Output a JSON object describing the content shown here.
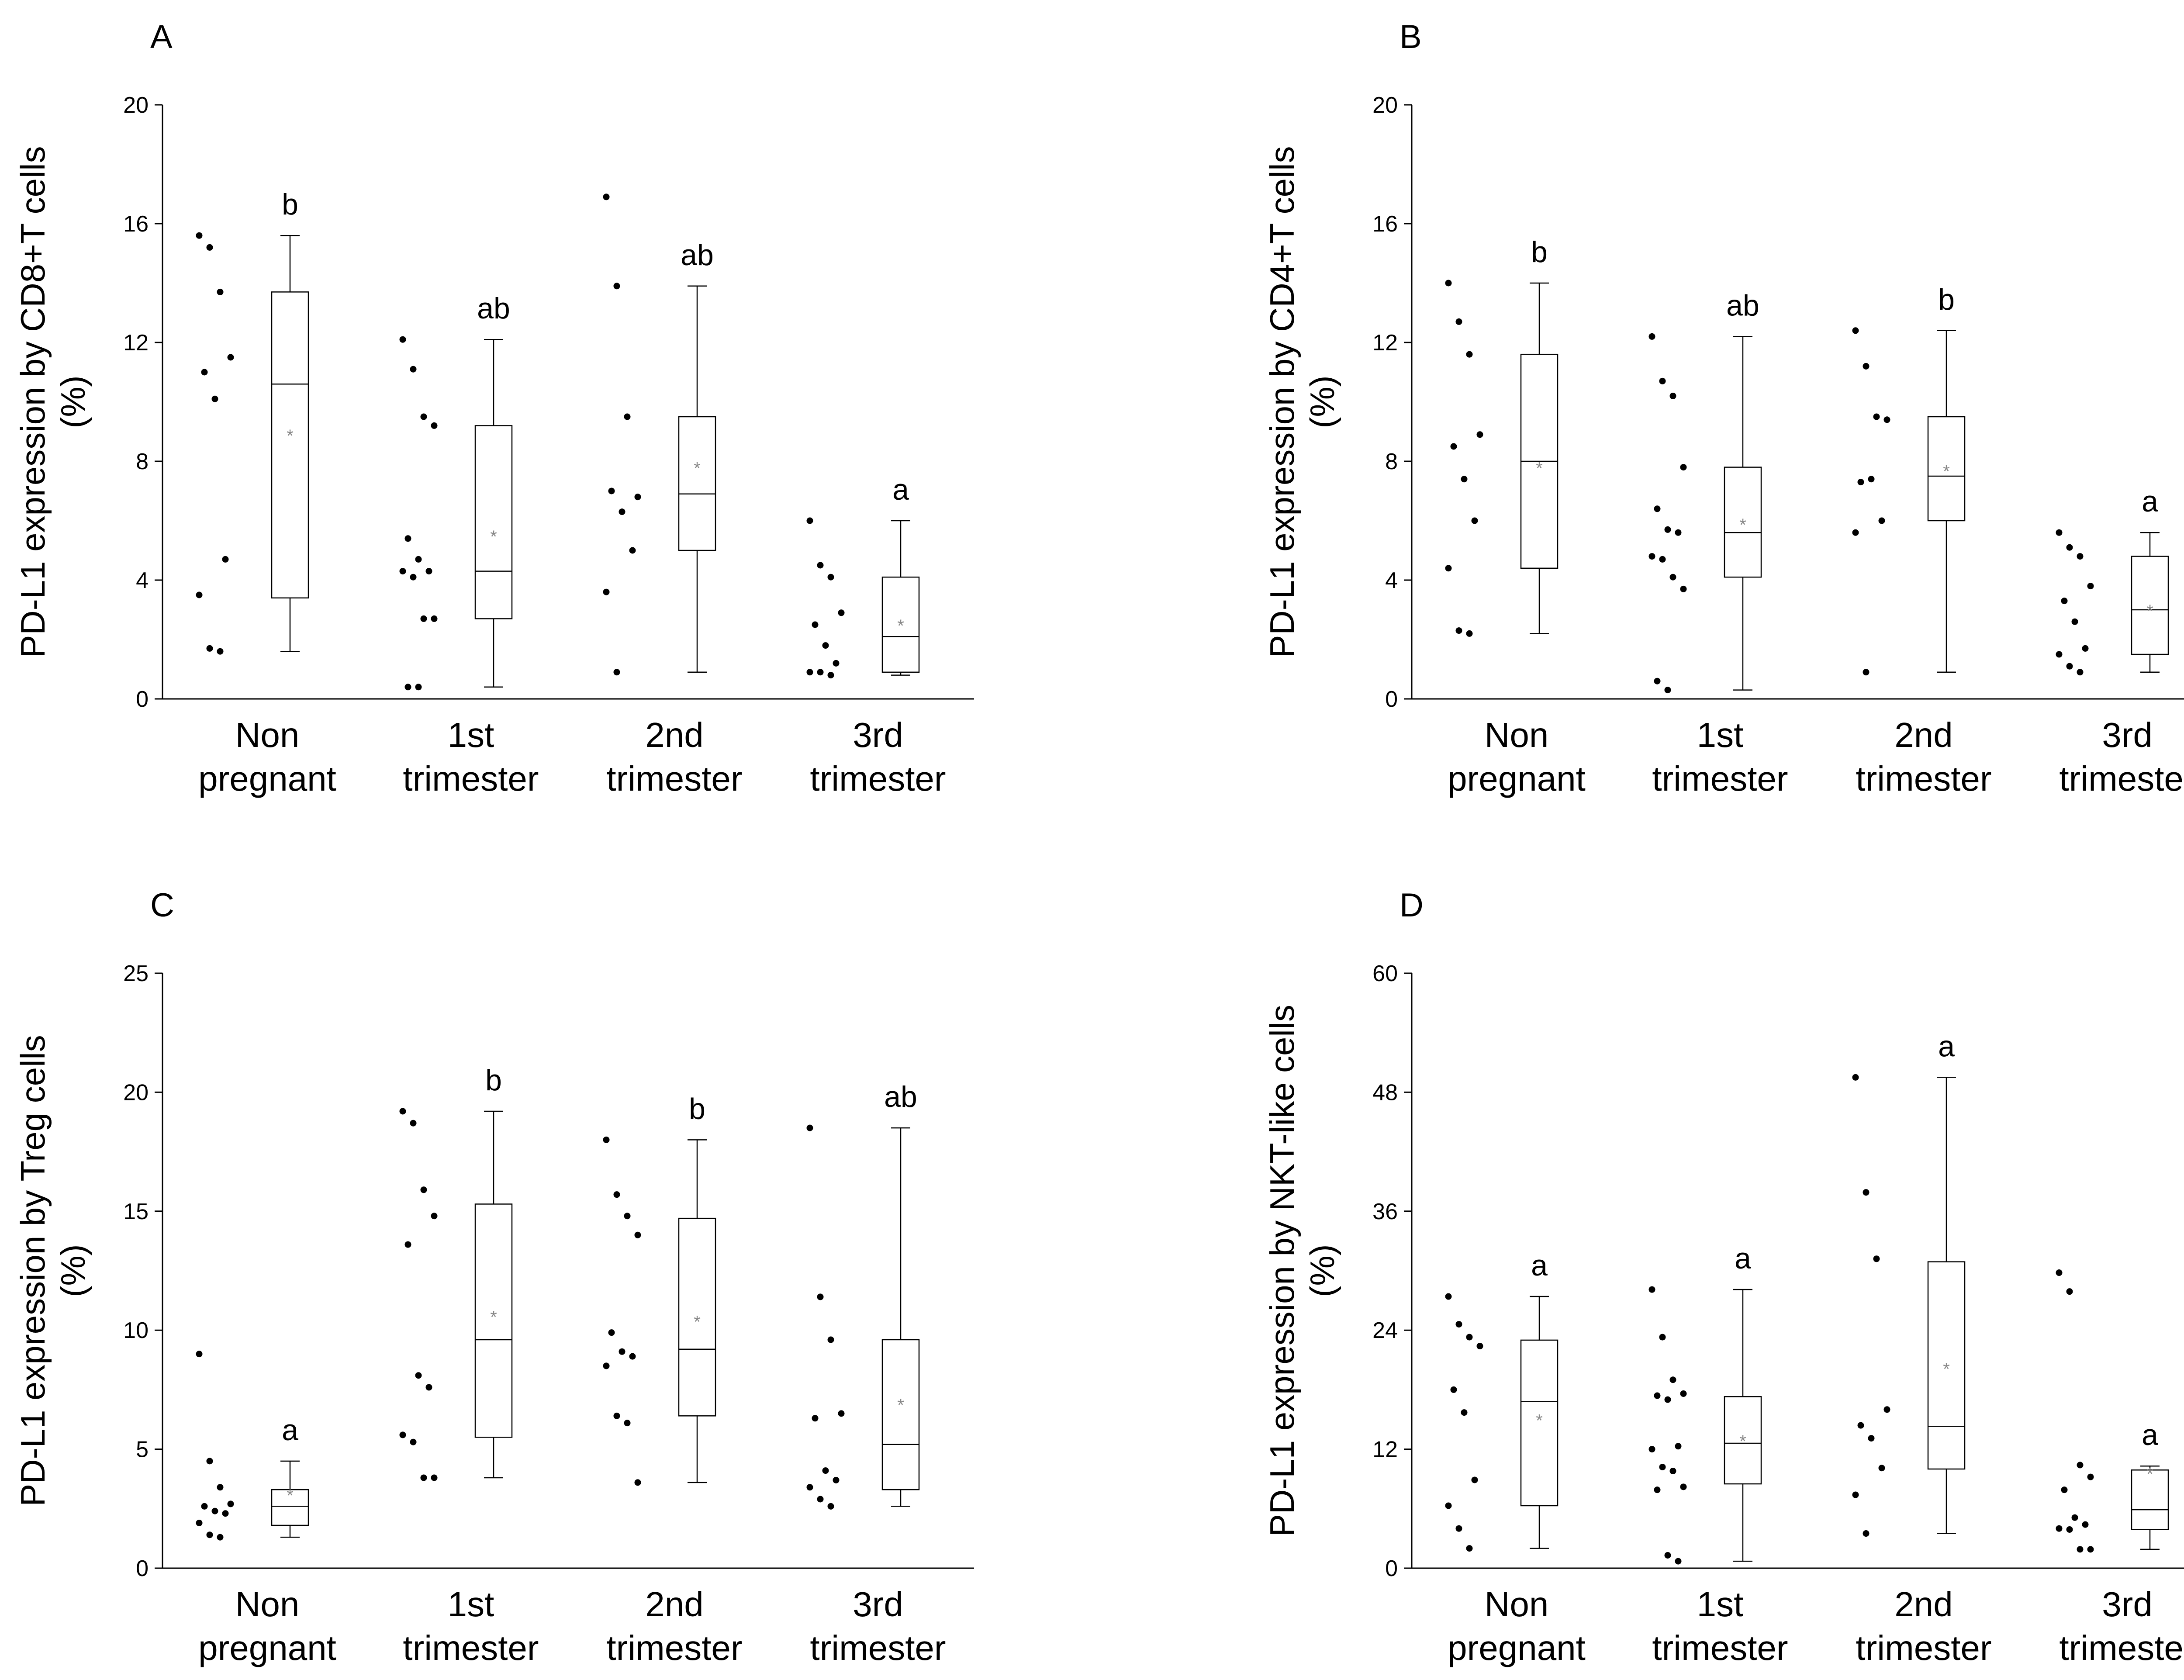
{
  "figure": {
    "colors": {
      "ink": "#000000",
      "mean_marker": "#888888",
      "background": "#ffffff"
    }
  },
  "chart_data": [
    {
      "panel": "A",
      "type": "box",
      "title": "",
      "ylabel": [
        "PD-L1 expression by CD8+T cells",
        "(%)"
      ],
      "ylim": [
        0,
        20
      ],
      "yticks": [
        0,
        4,
        8,
        12,
        16,
        20
      ],
      "categories": [
        [
          "Non",
          "pregnant"
        ],
        [
          "1st",
          "trimester"
        ],
        [
          "2nd",
          "trimester"
        ],
        [
          "3rd",
          "trimester"
        ]
      ],
      "groups": [
        {
          "points": [
            15.6,
            15.2,
            13.7,
            11.5,
            11.0,
            10.1,
            4.7,
            3.5,
            1.7,
            1.6
          ],
          "box": {
            "q1": 3.4,
            "median": 10.6,
            "q3": 13.7,
            "whisker_low": 1.6,
            "whisker_high": 15.6,
            "mean": 8.9
          },
          "letter": "b"
        },
        {
          "points": [
            12.1,
            11.1,
            9.5,
            9.2,
            5.4,
            4.7,
            4.3,
            4.3,
            4.1,
            2.7,
            2.7,
            0.4,
            0.4
          ],
          "box": {
            "q1": 2.7,
            "median": 4.3,
            "q3": 9.2,
            "whisker_low": 0.4,
            "whisker_high": 12.1,
            "mean": 5.5
          },
          "letter": "ab"
        },
        {
          "points": [
            16.9,
            13.9,
            9.5,
            6.8,
            7.0,
            6.3,
            5.0,
            3.6,
            0.9
          ],
          "box": {
            "q1": 5.0,
            "median": 6.9,
            "q3": 9.5,
            "whisker_low": 0.9,
            "whisker_high": 13.9,
            "mean": 7.8
          },
          "letter": "ab"
        },
        {
          "points": [
            6.0,
            4.5,
            4.1,
            2.9,
            2.5,
            1.8,
            1.2,
            0.9,
            0.9,
            0.8
          ],
          "box": {
            "q1": 0.9,
            "median": 2.1,
            "q3": 4.1,
            "whisker_low": 0.8,
            "whisker_high": 6.0,
            "mean": 2.5
          },
          "letter": "a"
        }
      ]
    },
    {
      "panel": "B",
      "type": "box",
      "title": "",
      "ylabel": [
        "PD-L1 expression by CD4+T cells",
        "(%)"
      ],
      "ylim": [
        0,
        20
      ],
      "yticks": [
        0,
        4,
        8,
        12,
        16,
        20
      ],
      "categories": [
        [
          "Non",
          "pregnant"
        ],
        [
          "1st",
          "trimester"
        ],
        [
          "2nd",
          "trimester"
        ],
        [
          "3rd",
          "trimester"
        ]
      ],
      "groups": [
        {
          "points": [
            14.0,
            12.7,
            11.6,
            8.9,
            8.5,
            7.4,
            6.0,
            4.4,
            2.3,
            2.2
          ],
          "box": {
            "q1": 4.4,
            "median": 8.0,
            "q3": 11.6,
            "whisker_low": 2.2,
            "whisker_high": 14.0,
            "mean": 7.8
          },
          "letter": "b"
        },
        {
          "points": [
            12.2,
            10.7,
            10.2,
            7.8,
            6.4,
            5.7,
            5.6,
            4.8,
            4.7,
            4.1,
            3.7,
            0.6,
            0.3
          ],
          "box": {
            "q1": 4.1,
            "median": 5.6,
            "q3": 7.8,
            "whisker_low": 0.3,
            "whisker_high": 12.2,
            "mean": 5.9
          },
          "letter": "ab"
        },
        {
          "points": [
            12.4,
            11.2,
            9.5,
            9.4,
            7.3,
            7.4,
            6.0,
            5.6,
            0.9
          ],
          "box": {
            "q1": 6.0,
            "median": 7.5,
            "q3": 9.5,
            "whisker_low": 0.9,
            "whisker_high": 12.4,
            "mean": 7.7
          },
          "letter": "b"
        },
        {
          "points": [
            5.6,
            5.1,
            4.8,
            3.8,
            3.3,
            2.6,
            1.7,
            1.5,
            1.1,
            0.9
          ],
          "box": {
            "q1": 1.5,
            "median": 3.0,
            "q3": 4.8,
            "whisker_low": 0.9,
            "whisker_high": 5.6,
            "mean": 3.0
          },
          "letter": "a"
        }
      ]
    },
    {
      "panel": "C",
      "type": "box",
      "title": "",
      "ylabel": [
        "PD-L1 expression by Treg cells",
        "(%)"
      ],
      "ylim": [
        0,
        25
      ],
      "yticks": [
        0,
        5,
        10,
        15,
        20,
        25
      ],
      "categories": [
        [
          "Non",
          "pregnant"
        ],
        [
          "1st",
          "trimester"
        ],
        [
          "2nd",
          "trimester"
        ],
        [
          "3rd",
          "trimester"
        ]
      ],
      "groups": [
        {
          "points": [
            9.0,
            4.5,
            3.4,
            2.7,
            2.6,
            2.4,
            2.3,
            1.9,
            1.4,
            1.3
          ],
          "box": {
            "q1": 1.8,
            "median": 2.6,
            "q3": 3.3,
            "whisker_low": 1.3,
            "whisker_high": 4.5,
            "mean": 3.1
          },
          "letter": "a"
        },
        {
          "points": [
            19.2,
            18.7,
            15.9,
            14.8,
            13.6,
            8.1,
            7.6,
            5.6,
            5.3,
            3.8,
            3.8
          ],
          "box": {
            "q1": 5.5,
            "median": 9.6,
            "q3": 15.3,
            "whisker_low": 3.8,
            "whisker_high": 19.2,
            "mean": 10.6
          },
          "letter": "b"
        },
        {
          "points": [
            18.0,
            15.7,
            14.8,
            14.0,
            9.9,
            9.1,
            8.9,
            8.5,
            6.4,
            6.1,
            3.6
          ],
          "box": {
            "q1": 6.4,
            "median": 9.2,
            "q3": 14.7,
            "whisker_low": 3.6,
            "whisker_high": 18.0,
            "mean": 10.4
          },
          "letter": "b"
        },
        {
          "points": [
            18.5,
            11.4,
            9.6,
            6.5,
            6.3,
            4.1,
            3.7,
            3.4,
            2.9,
            2.6
          ],
          "box": {
            "q1": 3.3,
            "median": 5.2,
            "q3": 9.6,
            "whisker_low": 2.6,
            "whisker_high": 18.5,
            "mean": 6.9
          },
          "letter": "ab"
        }
      ]
    },
    {
      "panel": "D",
      "type": "box",
      "title": "",
      "ylabel": [
        "PD-L1 expression by NKT-like cells",
        "(%)"
      ],
      "ylim": [
        0,
        60
      ],
      "yticks": [
        0,
        12,
        24,
        36,
        48,
        60
      ],
      "categories": [
        [
          "Non",
          "pregnant"
        ],
        [
          "1st",
          "trimester"
        ],
        [
          "2nd",
          "trimester"
        ],
        [
          "3rd",
          "trimester"
        ]
      ],
      "groups": [
        {
          "points": [
            27.4,
            24.6,
            23.3,
            22.4,
            18.0,
            15.7,
            8.9,
            6.3,
            4.0,
            2.0
          ],
          "box": {
            "q1": 6.3,
            "median": 16.8,
            "q3": 23.0,
            "whisker_low": 2.0,
            "whisker_high": 27.4,
            "mean": 15.0
          },
          "letter": "a"
        },
        {
          "points": [
            28.1,
            23.3,
            19.0,
            17.6,
            17.4,
            17.0,
            12.3,
            12.0,
            10.2,
            9.8,
            8.2,
            7.9,
            1.3,
            0.7
          ],
          "box": {
            "q1": 8.5,
            "median": 12.6,
            "q3": 17.3,
            "whisker_low": 0.7,
            "whisker_high": 28.1,
            "mean": 12.9
          },
          "letter": "a"
        },
        {
          "points": [
            49.5,
            37.9,
            31.2,
            16.0,
            14.4,
            13.1,
            10.1,
            7.4,
            3.5
          ],
          "box": {
            "q1": 10.0,
            "median": 14.3,
            "q3": 30.9,
            "whisker_low": 3.5,
            "whisker_high": 49.5,
            "mean": 20.2
          },
          "letter": "a"
        },
        {
          "points": [
            29.8,
            27.9,
            10.4,
            9.2,
            7.9,
            5.1,
            4.4,
            4.0,
            3.9,
            1.9,
            1.9
          ],
          "box": {
            "q1": 3.9,
            "median": 5.9,
            "q3": 9.9,
            "whisker_low": 1.9,
            "whisker_high": 10.3,
            "mean": 9.6
          },
          "letter": "a"
        }
      ]
    }
  ]
}
